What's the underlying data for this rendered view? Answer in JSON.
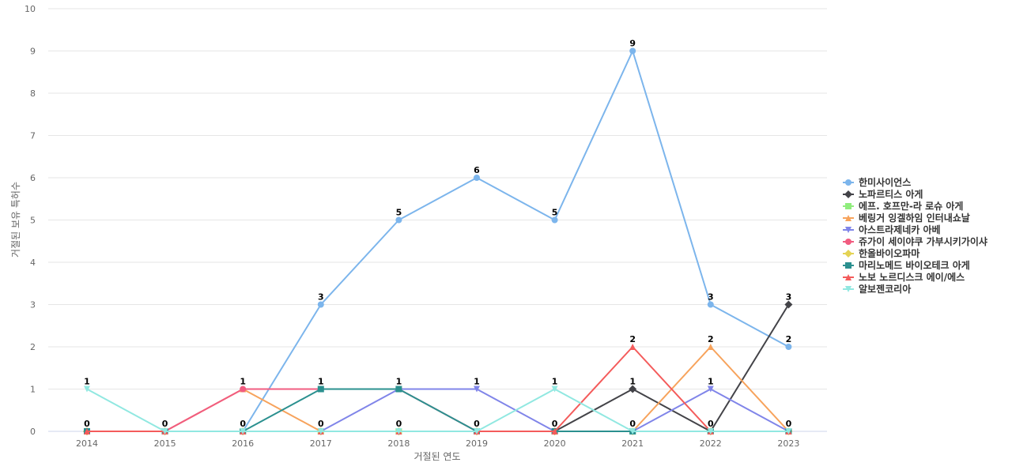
{
  "chart_data": {
    "type": "line",
    "x": [
      "2014",
      "2015",
      "2016",
      "2017",
      "2018",
      "2019",
      "2020",
      "2021",
      "2022",
      "2023"
    ],
    "xlabel": "거절된 연도",
    "ylabel": "거절된 보유 특허수",
    "ylim": [
      0,
      10
    ],
    "yticks": [
      0,
      1,
      2,
      3,
      4,
      5,
      6,
      7,
      8,
      9,
      10
    ],
    "grid": true,
    "legend_position": "right",
    "series": [
      {
        "name": "한미사이언스",
        "color": "#7cb5ec",
        "marker": "circle",
        "values": [
          0,
          0,
          0,
          3,
          5,
          6,
          5,
          9,
          3,
          2
        ]
      },
      {
        "name": "노파르티스 아게",
        "color": "#434348",
        "marker": "diamond",
        "values": [
          0,
          0,
          0,
          0,
          0,
          0,
          0,
          1,
          0,
          3
        ]
      },
      {
        "name": "에프. 호프만-라 로슈 아게",
        "color": "#90ed7d",
        "marker": "square",
        "values": [
          0,
          0,
          0,
          0,
          0,
          0,
          0,
          0,
          0,
          0
        ]
      },
      {
        "name": "베링거 잉겔하임 인터내쇼날",
        "color": "#f7a35c",
        "marker": "triangle",
        "values": [
          0,
          0,
          1,
          0,
          0,
          0,
          0,
          0,
          2,
          0
        ]
      },
      {
        "name": "아스트라제네카 아베",
        "color": "#8085e9",
        "marker": "triangle-down",
        "values": [
          0,
          0,
          0,
          0,
          1,
          1,
          0,
          0,
          1,
          0
        ]
      },
      {
        "name": "쥬가이 세이야쿠 가부시키가이샤",
        "color": "#f15c80",
        "marker": "circle",
        "values": [
          0,
          0,
          1,
          1,
          1,
          0,
          0,
          0,
          0,
          0
        ]
      },
      {
        "name": "한올바이오파마",
        "color": "#e4d354",
        "marker": "diamond",
        "values": [
          0,
          0,
          0,
          0,
          0,
          0,
          0,
          0,
          0,
          0
        ]
      },
      {
        "name": "마리노메드 바이오테크 아게",
        "color": "#2b908f",
        "marker": "square",
        "values": [
          0,
          0,
          0,
          1,
          1,
          0,
          0,
          0,
          0,
          0
        ]
      },
      {
        "name": "노보 노르디스크 에이/에스",
        "color": "#f45b5b",
        "marker": "triangle",
        "values": [
          0,
          0,
          0,
          0,
          0,
          0,
          0,
          2,
          0,
          0
        ]
      },
      {
        "name": "알보젠코리아",
        "color": "#91e8e1",
        "marker": "triangle-down",
        "values": [
          1,
          0,
          0,
          0,
          0,
          0,
          1,
          0,
          0,
          0
        ]
      }
    ],
    "data_labels": [
      {
        "x": "2014",
        "y": 0,
        "text": "0"
      },
      {
        "x": "2014",
        "y": 1,
        "text": "1"
      },
      {
        "x": "2015",
        "y": 0,
        "text": "0"
      },
      {
        "x": "2016",
        "y": 0,
        "text": "0"
      },
      {
        "x": "2016",
        "y": 1,
        "text": "1"
      },
      {
        "x": "2017",
        "y": 0,
        "text": "0"
      },
      {
        "x": "2017",
        "y": 1,
        "text": "1"
      },
      {
        "x": "2017",
        "y": 3,
        "text": "3"
      },
      {
        "x": "2018",
        "y": 0,
        "text": "0"
      },
      {
        "x": "2018",
        "y": 1,
        "text": "1"
      },
      {
        "x": "2018",
        "y": 5,
        "text": "5"
      },
      {
        "x": "2019",
        "y": 0,
        "text": "0"
      },
      {
        "x": "2019",
        "y": 1,
        "text": "1"
      },
      {
        "x": "2019",
        "y": 6,
        "text": "6"
      },
      {
        "x": "2020",
        "y": 0,
        "text": "0"
      },
      {
        "x": "2020",
        "y": 1,
        "text": "1"
      },
      {
        "x": "2020",
        "y": 5,
        "text": "5"
      },
      {
        "x": "2021",
        "y": 0,
        "text": "0"
      },
      {
        "x": "2021",
        "y": 1,
        "text": "1"
      },
      {
        "x": "2021",
        "y": 2,
        "text": "2"
      },
      {
        "x": "2021",
        "y": 9,
        "text": "9"
      },
      {
        "x": "2022",
        "y": 0,
        "text": "0"
      },
      {
        "x": "2022",
        "y": 1,
        "text": "1"
      },
      {
        "x": "2022",
        "y": 2,
        "text": "2"
      },
      {
        "x": "2022",
        "y": 3,
        "text": "3"
      },
      {
        "x": "2023",
        "y": 0,
        "text": "0"
      },
      {
        "x": "2023",
        "y": 2,
        "text": "2"
      },
      {
        "x": "2023",
        "y": 3,
        "text": "3"
      }
    ]
  }
}
